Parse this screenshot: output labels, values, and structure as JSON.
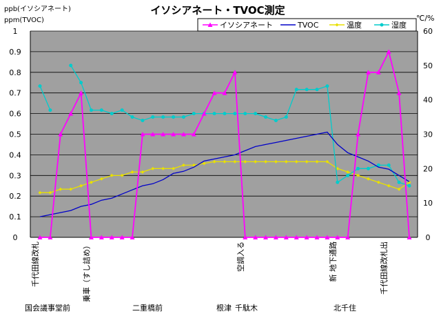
{
  "chart_data": {
    "type": "line",
    "title": "イソシアネート・TVOC測定",
    "left_axis_labels": [
      "ppb(イソシアネート)",
      "ppm(TVOC)"
    ],
    "right_axis_label": "℃/%",
    "yleft": {
      "min": 0,
      "max": 1.0,
      "ticks": [
        "0",
        "0.1",
        "0.2",
        "0.3",
        "0.4",
        "0.5",
        "0.6",
        "0.7",
        "0.8",
        "0.9",
        "1"
      ]
    },
    "yright": {
      "min": 0,
      "max": 60,
      "ticks": [
        "0",
        "10",
        "20",
        "30",
        "40",
        "50",
        "60"
      ]
    },
    "grid": "horizontal",
    "legend_position": "top-right",
    "x_count": 37,
    "series": [
      {
        "name": "イソシアネート",
        "axis": "left",
        "color": "#ff00ff",
        "marker": "triangle",
        "values": [
          0,
          0,
          0.5,
          0.6,
          0.7,
          0,
          0,
          0,
          0,
          0,
          0.5,
          0.5,
          0.5,
          0.5,
          0.5,
          0.5,
          0.6,
          0.7,
          0.7,
          0.8,
          0,
          0,
          0,
          0,
          0,
          0,
          0,
          0,
          0,
          0,
          0,
          0.5,
          0.8,
          0.8,
          0.9,
          0.7,
          0
        ]
      },
      {
        "name": "TVOC",
        "axis": "left",
        "color": "#0000c8",
        "marker": "none",
        "values": [
          0.1,
          0.11,
          0.12,
          0.13,
          0.15,
          0.16,
          0.18,
          0.19,
          0.21,
          0.23,
          0.25,
          0.26,
          0.28,
          0.31,
          0.32,
          0.34,
          0.37,
          0.38,
          0.39,
          0.4,
          0.42,
          0.44,
          0.45,
          0.46,
          0.47,
          0.48,
          0.49,
          0.5,
          0.51,
          0.45,
          0.41,
          0.39,
          0.37,
          0.34,
          0.33,
          0.3,
          0.27
        ]
      },
      {
        "name": "温度",
        "axis": "right",
        "color": "#e8e000",
        "marker": "diamond",
        "values": [
          13,
          13,
          14,
          14,
          15,
          16,
          17,
          18,
          18,
          19,
          19,
          20,
          20,
          20,
          21,
          21,
          21.5,
          22,
          22,
          22,
          22,
          22,
          22,
          22,
          22,
          22,
          22,
          22,
          22,
          20,
          19,
          18,
          17,
          16,
          15,
          14,
          16
        ]
      },
      {
        "name": "湿度",
        "axis": "right",
        "color": "#00cccc",
        "marker": "circle",
        "values": [
          44,
          37,
          null,
          50,
          45,
          37,
          37,
          36,
          37,
          35,
          34,
          35,
          35,
          35,
          35,
          36,
          36,
          36,
          36,
          36,
          36,
          36,
          35,
          34,
          35,
          43,
          43,
          43,
          44,
          16,
          18,
          20,
          20,
          21,
          21,
          16,
          15
        ]
      }
    ],
    "category_labels": [
      {
        "index": 0,
        "text": "千代田線改札"
      },
      {
        "index": 5,
        "text": "乗車（すし詰め）"
      },
      {
        "index": 20,
        "text": "空調入る"
      },
      {
        "index": 29,
        "text": "新 地下通路"
      },
      {
        "index": 34,
        "text": "千代田線改札出"
      }
    ],
    "station_labels": [
      {
        "index": 0,
        "text": "国会議事堂前"
      },
      {
        "index": 10,
        "text": "二重橋前"
      },
      {
        "index": 18,
        "text": "根津"
      },
      {
        "index": 20,
        "text": "千駄木"
      },
      {
        "index": 29,
        "text": "北千住"
      }
    ]
  }
}
